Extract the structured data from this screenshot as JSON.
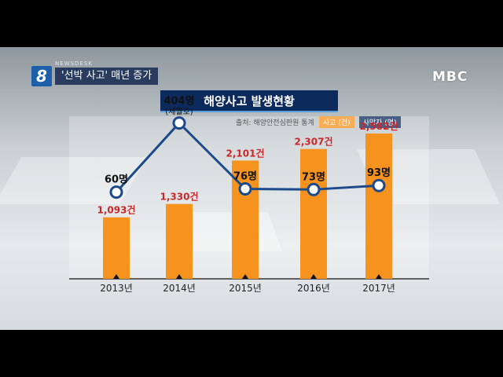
{
  "broadcast": {
    "program_number": "8",
    "program_label": "NEWSDESK",
    "headline": "'선박 사고' 매년 증가",
    "logo": "MBC"
  },
  "legend": {
    "source": "출처: 해양안전심판원 통계",
    "accidents_label": "사고 (건)",
    "deaths_label": "사망자 (명)"
  },
  "colors": {
    "bar": "#f6921e",
    "line": "#1c4a8a",
    "bar_label": "#c8282a",
    "title_bg": "#0d2a5c"
  },
  "chart_data": {
    "type": "bar",
    "title": "해양사고 발생현황",
    "categories": [
      "2013년",
      "2014년",
      "2015년",
      "2016년",
      "2017년"
    ],
    "series": [
      {
        "name": "사고 (건)",
        "type": "bar",
        "values": [
          1093,
          1330,
          2101,
          2307,
          2582
        ],
        "labels": [
          "1,093건",
          "1,330건",
          "2,101건",
          "2,307건",
          "2,582건"
        ]
      },
      {
        "name": "사망자 (명)",
        "type": "line",
        "values": [
          60,
          404,
          76,
          73,
          93
        ],
        "labels": [
          "60명",
          "404명",
          "76명",
          "73명",
          "93명"
        ],
        "annotations": [
          "",
          "(세월호)",
          "",
          "",
          ""
        ]
      }
    ],
    "bar_ylim": [
      0,
      3000
    ],
    "line_ylim": [
      0,
      500
    ]
  }
}
